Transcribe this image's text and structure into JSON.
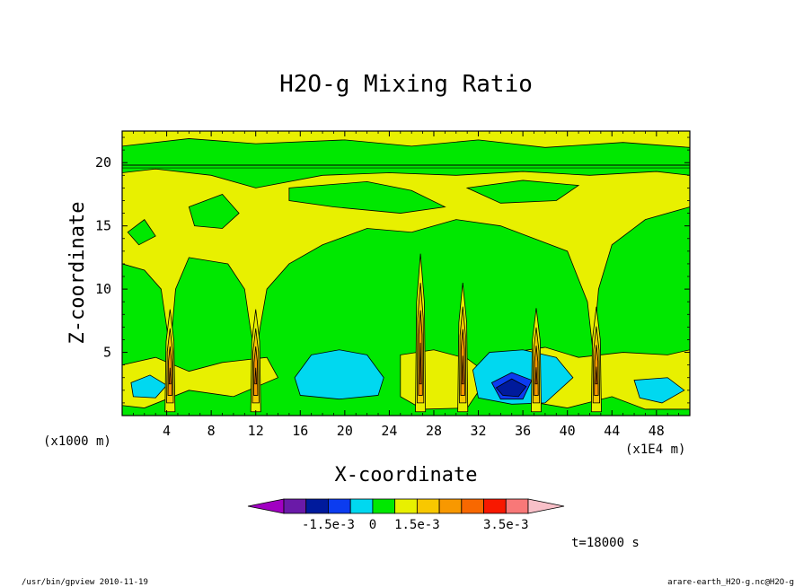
{
  "chart_data": {
    "type": "contour",
    "title": "H2O-g Mixing Ratio",
    "xlabel": "X-coordinate",
    "ylabel": "Z-coordinate",
    "x_unit_label": "(x1E4 m)",
    "y_unit_label": "(x1000 m)",
    "x_ticks": [
      "4",
      "8",
      "12",
      "16",
      "20",
      "24",
      "28",
      "32",
      "36",
      "40",
      "44",
      "48"
    ],
    "y_ticks": [
      "5",
      "10",
      "15",
      "20"
    ],
    "xlim": [
      0,
      51
    ],
    "ylim": [
      0,
      22.5
    ],
    "time_label": "t=18000 s",
    "colorbar": {
      "colors": [
        "#a100c2",
        "#6a1aa8",
        "#001a9c",
        "#0c3cf0",
        "#00d8f0",
        "#00e800",
        "#e8f000",
        "#f8c800",
        "#f89800",
        "#f86800",
        "#f81800",
        "#f87878",
        "#f8c0c8"
      ],
      "labels": [
        "-1.5e-3",
        "0",
        "1.5e-3",
        "3.5e-3"
      ]
    },
    "features": {
      "towers_x": [
        4.3,
        12.0,
        26.8,
        30.6,
        37.2,
        42.6
      ],
      "dry_layer_z": 19.8,
      "dry_pool_x": [
        [
          15.5,
          23.5
        ],
        [
          31.5,
          40.5
        ]
      ]
    }
  },
  "footer": {
    "left": "/usr/bin/gpview  2010-11-19",
    "right": "arare-earth_H2O-g.nc@H2O-g"
  }
}
